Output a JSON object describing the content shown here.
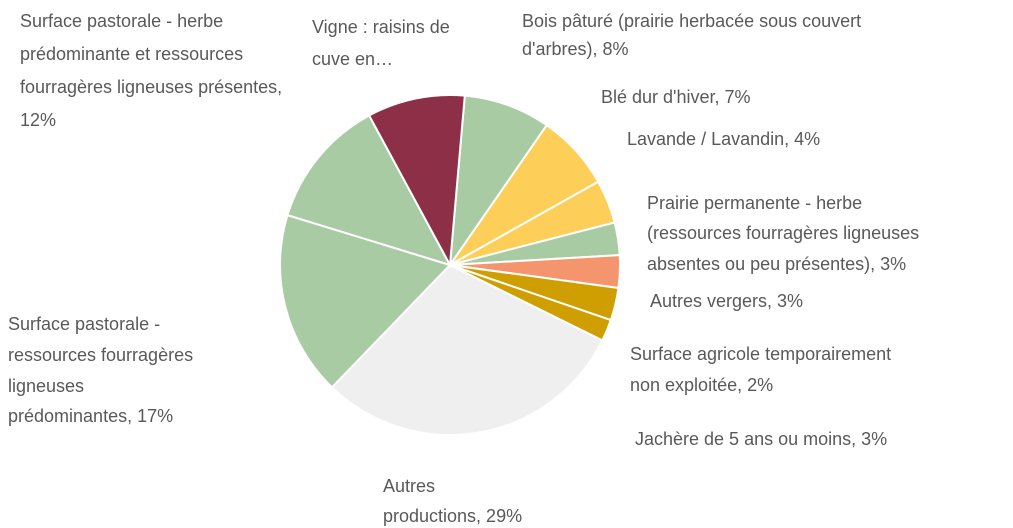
{
  "chart_data": {
    "type": "pie",
    "categories": [
      "Bois pâturé (prairie herbacée sous couvert d'arbres)",
      "Blé dur d'hiver",
      "Lavande / Lavandin",
      "Prairie permanente - herbe (ressources fourragères ligneuses absentes ou peu présentes)",
      "Jachère de 5 ans ou moins",
      "Autres vergers",
      "Surface agricole temporairement non exploitée",
      "Autres productions",
      "Surface pastorale - ressources fourragères ligneuses prédominantes",
      "Surface pastorale - herbe prédominante et ressources fourragères ligneuses présentes",
      "Vigne : raisins de cuve en…"
    ],
    "values": [
      8,
      7,
      4,
      3,
      3,
      3,
      2,
      29,
      17,
      12,
      9
    ],
    "labels": [
      [
        "Bois pâturé (prairie herbacée sous couvert",
        "d'arbres), 8%"
      ],
      [
        "Blé dur d'hiver, 7%"
      ],
      [
        "Lavande / Lavandin, 4%"
      ],
      [
        "Prairie permanente - herbe",
        "(ressources fourragères ligneuses",
        "absentes ou peu présentes), 3%"
      ],
      [
        "Jachère de 5 ans ou moins, 3%"
      ],
      [
        "Autres vergers, 3%"
      ],
      [
        "Surface agricole temporairement",
        "non exploitée, 2%"
      ],
      [
        "Autres",
        "productions, 29%"
      ],
      [
        "Surface pastorale -",
        "ressources fourragères",
        "ligneuses",
        "prédominantes, 17%"
      ],
      [
        "Surface pastorale - herbe",
        "prédominante et ressources",
        "fourragères ligneuses présentes,",
        "12%"
      ],
      [
        "Vigne : raisins de",
        "cuve en…"
      ]
    ],
    "colors": [
      "#a9cba4",
      "#fdcf58",
      "#fdcf58",
      "#a9cba4",
      "#f4956e",
      "#cf9e00",
      "#cf9e00",
      "#efefef",
      "#a9cba4",
      "#a9cba4",
      "#8e2f48"
    ]
  }
}
